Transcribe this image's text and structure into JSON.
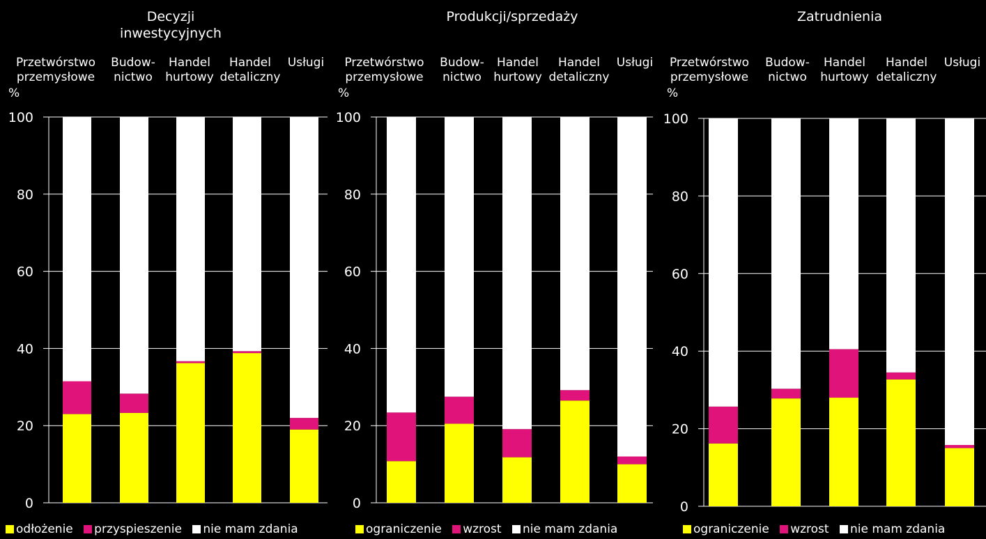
{
  "unit": "%",
  "colors": {
    "seg1": "#FFFF00",
    "seg2": "#E0137A",
    "seg3": "#FFFFFF",
    "axis": "#FFFFFF",
    "background": "#000000"
  },
  "chart_data": [
    {
      "type": "bar",
      "stacked": true,
      "title": "Decyzji\ninwestycyjnych",
      "categories": [
        "Przetwórstwo\nprzemysłowe",
        "Budow-\nnictwo",
        "Handel\nhurtowy",
        "Handel\ndetaliczny",
        "Usługi"
      ],
      "series": [
        {
          "name": "odłożenie",
          "values": [
            23,
            23.3,
            36.2,
            38.8,
            19
          ]
        },
        {
          "name": "przyspieszenie",
          "values": [
            8.5,
            5,
            0.5,
            0.5,
            3
          ]
        },
        {
          "name": "nie mam zdania",
          "values": [
            68.5,
            71.7,
            63.3,
            60.7,
            78
          ]
        }
      ],
      "ylim": [
        0,
        100
      ],
      "yticks": [
        0,
        20,
        40,
        60,
        80,
        100
      ],
      "grid": false,
      "legend": "bottom"
    },
    {
      "type": "bar",
      "stacked": true,
      "title": "Produkcji/sprzedaży",
      "categories": [
        "Przetwórstwo\nprzemysłowe",
        "Budow-\nnictwo",
        "Handel\nhurtowy",
        "Handel\ndetaliczny",
        "Usługi"
      ],
      "series": [
        {
          "name": "ograniczenie",
          "values": [
            10.8,
            20.5,
            11.8,
            26.5,
            10
          ]
        },
        {
          "name": "wzrost",
          "values": [
            12.6,
            7,
            7.3,
            2.7,
            2
          ]
        },
        {
          "name": "nie mam zdania",
          "values": [
            76.6,
            72.5,
            80.9,
            70.8,
            88
          ]
        }
      ],
      "ylim": [
        0,
        100
      ],
      "yticks": [
        0,
        20,
        40,
        60,
        80,
        100
      ],
      "grid": false,
      "legend": "bottom"
    },
    {
      "type": "bar",
      "stacked": true,
      "title": "Zatrudnienia",
      "categories": [
        "Przetwórstwo\nprzemysłowe",
        "Budow-\nnictwo",
        "Handel\nhurtowy",
        "Handel\ndetaliczny",
        "Usługi"
      ],
      "series": [
        {
          "name": "ograniczenie",
          "values": [
            16.2,
            27.8,
            28,
            32.7,
            15
          ]
        },
        {
          "name": "wzrost",
          "values": [
            9.5,
            2.5,
            12.5,
            1.8,
            0.8
          ]
        },
        {
          "name": "nie mam zdania",
          "values": [
            74.3,
            69.7,
            59.5,
            65.5,
            84.2
          ]
        }
      ],
      "ylim": [
        0,
        100
      ],
      "yticks": [
        0,
        20,
        40,
        60,
        80,
        100
      ],
      "grid": false,
      "legend": "bottom"
    }
  ]
}
